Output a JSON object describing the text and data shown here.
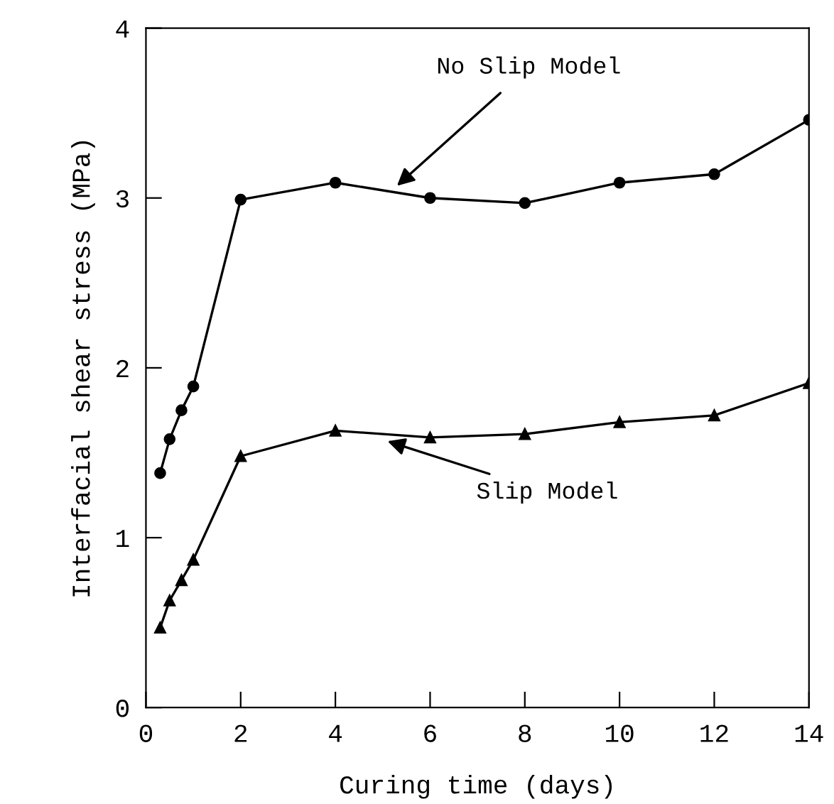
{
  "chart_data": {
    "type": "line",
    "xlabel": "Curing time (days)",
    "ylabel": "Interfacial shear stress (MPa)",
    "xlim": [
      0,
      14
    ],
    "ylim": [
      0,
      4
    ],
    "xticks": [
      0,
      2,
      4,
      6,
      8,
      10,
      12,
      14
    ],
    "yticks": [
      0,
      1,
      2,
      3,
      4
    ],
    "grid": false,
    "legend": false,
    "line_style": "solid",
    "series": [
      {
        "name": "No Slip Model",
        "color": "#000000",
        "marker": "circle",
        "x": [
          0.3,
          0.5,
          0.75,
          1,
          2,
          4,
          6,
          8,
          10,
          12,
          14
        ],
        "values": [
          1.38,
          1.58,
          1.75,
          1.89,
          2.99,
          3.09,
          3.0,
          2.97,
          3.09,
          3.14,
          3.46
        ]
      },
      {
        "name": "Slip Model",
        "color": "#000000",
        "marker": "triangle",
        "x": [
          0.3,
          0.5,
          0.75,
          1,
          2,
          4,
          6,
          8,
          10,
          12,
          14
        ],
        "values": [
          0.47,
          0.63,
          0.75,
          0.87,
          1.48,
          1.63,
          1.59,
          1.61,
          1.68,
          1.72,
          1.91
        ]
      }
    ]
  }
}
